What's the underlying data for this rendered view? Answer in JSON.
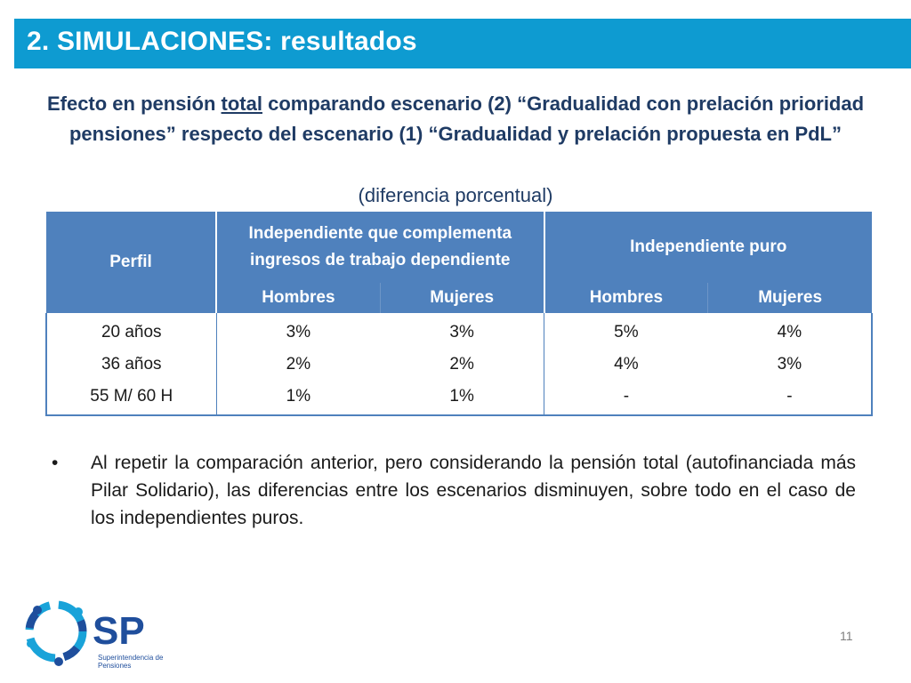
{
  "header": {
    "title": "2. SIMULACIONES: resultados"
  },
  "subtitle": {
    "part1": "Efecto en pensión ",
    "underlined": "total",
    "part2": " comparando escenario (2) “Gradualidad con prelación prioridad pensiones” respecto del escenario (1) “Gradualidad y prelación propuesta en PdL”",
    "note": "(diferencia porcentual)"
  },
  "table": {
    "perfil_header": "Perfil",
    "group1_header": "Independiente que complementa ingresos de trabajo dependiente",
    "group2_header": "Independiente puro",
    "sub_headers": [
      "Hombres",
      "Mujeres",
      "Hombres",
      "Mujeres"
    ],
    "rows": [
      {
        "perfil": "20 años",
        "values": [
          "3%",
          "3%",
          "5%",
          "4%"
        ]
      },
      {
        "perfil": "36 años",
        "values": [
          "2%",
          "2%",
          "4%",
          "3%"
        ]
      },
      {
        "perfil": "55 M/ 60 H",
        "values": [
          "1%",
          "1%",
          "-",
          "-"
        ]
      }
    ]
  },
  "bullet": {
    "symbol": "•",
    "text": "Al repetir la comparación anterior, pero considerando la pensión total (autofinanciada más Pilar Solidario), las diferencias entre los escenarios disminuyen, sobre todo en el caso de los independientes puros."
  },
  "footer": {
    "page_number": "11",
    "logo_initials": "SP",
    "logo_name_line1": "Superintendencia de",
    "logo_name_line2": "Pensiones"
  },
  "colors": {
    "title_bar": "#0e9bd1",
    "table_header": "#4f81bd",
    "subtitle_text": "#1f3b64",
    "logo_blue": "#1f4e9c",
    "logo_light_blue": "#19a3d9"
  }
}
